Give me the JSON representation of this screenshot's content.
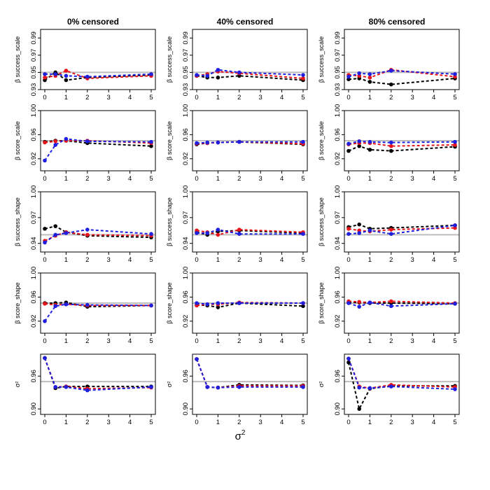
{
  "figure": {
    "column_titles": [
      "0% censored",
      "40% censored",
      "80% censored"
    ],
    "row_ylabels": [
      "β success_scale",
      "β score_scale",
      "β success_shape",
      "β score_shape",
      "σ²"
    ],
    "xlabel": "σ",
    "xlabel_sup": "2"
  },
  "colors": {
    "black": "#000000",
    "red": "#e8141b",
    "blue": "#1f1fe0",
    "reference": "#bdbdbd"
  },
  "chart_data": {
    "type": "line",
    "layout": "5 rows × 3 columns grid of small multiples",
    "x": [
      0,
      0.5,
      1,
      2,
      5
    ],
    "xticks": [
      0,
      1,
      2,
      3,
      4,
      5
    ],
    "xlim": [
      0,
      5
    ],
    "series_names": [
      "black",
      "red",
      "blue"
    ],
    "reference_line": 0.95,
    "rows": [
      {
        "ylabel": "β success_scale",
        "ylim": [
          0.93,
          1.0
        ],
        "yticks": [
          0.93,
          0.95,
          0.97,
          0.99
        ],
        "ytick_labels": [
          "0.93",
          "0.95",
          "0.97",
          "0.99"
        ],
        "panels": [
          {
            "title": "0% censored",
            "series": {
              "black": [
                0.941,
                0.95,
                0.941,
                0.944,
                0.947
              ],
              "red": [
                0.944,
                0.946,
                0.952,
                0.943,
                0.946
              ],
              "blue": [
                0.948,
                0.948,
                0.946,
                0.945,
                0.948
              ]
            }
          },
          {
            "title": "40% censored",
            "series": {
              "black": [
                0.946,
                0.944,
                0.944,
                0.946,
                0.941
              ],
              "red": [
                0.946,
                0.948,
                0.951,
                0.949,
                0.943
              ],
              "blue": [
                0.947,
                0.946,
                0.953,
                0.95,
                0.947
              ]
            }
          },
          {
            "title": "80% censored",
            "series": {
              "black": [
                0.942,
                0.943,
                0.939,
                0.936,
                0.943
              ],
              "red": [
                0.947,
                0.946,
                0.944,
                0.953,
                0.945
              ],
              "blue": [
                0.945,
                0.949,
                0.948,
                0.952,
                0.948
              ]
            }
          }
        ]
      },
      {
        "ylabel": "β score_scale",
        "ylim": [
          0.9,
          1.0
        ],
        "yticks": [
          0.92,
          0.96,
          1.0
        ],
        "ytick_labels": [
          "0.92",
          "0.96",
          "1.00"
        ],
        "panels": [
          {
            "title": "0% censored",
            "series": {
              "black": [
                0.948,
                0.95,
                0.95,
                0.946,
                0.941
              ],
              "red": [
                0.947,
                0.949,
                0.95,
                0.95,
                0.946
              ],
              "blue": [
                0.917,
                0.943,
                0.953,
                0.949,
                0.948
              ]
            }
          },
          {
            "title": "40% censored",
            "series": {
              "black": [
                0.944,
                0.946,
                0.947,
                0.948,
                0.944
              ],
              "red": [
                0.945,
                0.946,
                0.947,
                0.948,
                0.945
              ],
              "blue": [
                0.946,
                0.947,
                0.947,
                0.948,
                0.948
              ]
            }
          },
          {
            "title": "80% censored",
            "series": {
              "black": [
                0.933,
                0.941,
                0.935,
                0.933,
                0.94
              ],
              "red": [
                0.944,
                0.946,
                0.946,
                0.941,
                0.943
              ],
              "blue": [
                0.945,
                0.949,
                0.948,
                0.947,
                0.948
              ]
            }
          }
        ]
      },
      {
        "ylabel": "β success_shape",
        "ylim": [
          0.93,
          1.0
        ],
        "yticks": [
          0.94,
          0.97,
          1.0
        ],
        "ytick_labels": [
          "0.94",
          "0.97",
          "1.00"
        ],
        "panels": [
          {
            "title": "0% censored",
            "series": {
              "black": [
                0.957,
                0.96,
                0.953,
                0.949,
                0.947
              ],
              "red": [
                0.943,
                0.949,
                0.953,
                0.95,
                0.949
              ],
              "blue": [
                0.941,
                0.95,
                0.952,
                0.956,
                0.951
              ]
            }
          },
          {
            "title": "40% censored",
            "series": {
              "black": [
                0.953,
                0.95,
                0.954,
                0.955,
                0.952
              ],
              "red": [
                0.955,
                0.953,
                0.95,
                0.956,
                0.953
              ],
              "blue": [
                0.952,
                0.952,
                0.956,
                0.951,
                0.951
              ]
            }
          },
          {
            "title": "80% censored",
            "series": {
              "black": [
                0.959,
                0.962,
                0.957,
                0.958,
                0.961
              ],
              "red": [
                0.957,
                0.955,
                0.954,
                0.956,
                0.958
              ],
              "blue": [
                0.951,
                0.952,
                0.955,
                0.951,
                0.961
              ]
            }
          }
        ]
      },
      {
        "ylabel": "β score_shape",
        "ylim": [
          0.9,
          1.0
        ],
        "yticks": [
          0.92,
          0.96,
          1.0
        ],
        "ytick_labels": [
          "0.92",
          "0.96",
          "1.00"
        ],
        "panels": [
          {
            "title": "0% censored",
            "series": {
              "black": [
                0.95,
                0.95,
                0.951,
                0.944,
                0.946
              ],
              "red": [
                0.949,
                0.947,
                0.948,
                0.946,
                0.946
              ],
              "blue": [
                0.92,
                0.945,
                0.948,
                0.947,
                0.946
              ]
            }
          },
          {
            "title": "40% censored",
            "series": {
              "black": [
                0.947,
                0.946,
                0.943,
                0.95,
                0.945
              ],
              "red": [
                0.946,
                0.948,
                0.948,
                0.951,
                0.95
              ],
              "blue": [
                0.95,
                0.948,
                0.95,
                0.95,
                0.95
              ]
            }
          },
          {
            "title": "80% censored",
            "series": {
              "black": [
                0.951,
                0.951,
                0.95,
                0.95,
                0.949
              ],
              "red": [
                0.953,
                0.952,
                0.951,
                0.953,
                0.95
              ],
              "blue": [
                0.95,
                0.944,
                0.951,
                0.945,
                0.949
              ]
            }
          }
        ]
      },
      {
        "ylabel": "σ²",
        "ylim": [
          0.89,
          1.0
        ],
        "yticks": [
          0.9,
          0.96
        ],
        "ytick_labels": [
          "0.90",
          "0.96"
        ],
        "panels": [
          {
            "title": "0% censored",
            "series": {
              "black": [
                0.993,
                0.938,
                0.941,
                0.941,
                0.941
              ],
              "red": [
                0.993,
                0.94,
                0.941,
                0.937,
                0.939
              ],
              "blue": [
                0.993,
                0.94,
                0.94,
                0.934,
                0.94
              ]
            }
          },
          {
            "title": "40% censored",
            "series": {
              "black": [
                0.991,
                0.94,
                0.939,
                0.944,
                0.943
              ],
              "red": [
                0.991,
                0.94,
                0.939,
                0.942,
                0.942
              ],
              "blue": [
                0.991,
                0.94,
                0.939,
                0.94,
                0.94
              ]
            }
          },
          {
            "title": "80% censored",
            "series": {
              "black": [
                0.985,
                0.9,
                0.937,
                0.942,
                0.942
              ],
              "red": [
                0.992,
                0.941,
                0.938,
                0.944,
                0.94
              ],
              "blue": [
                0.992,
                0.939,
                0.938,
                0.941,
                0.936
              ]
            }
          }
        ]
      }
    ]
  }
}
